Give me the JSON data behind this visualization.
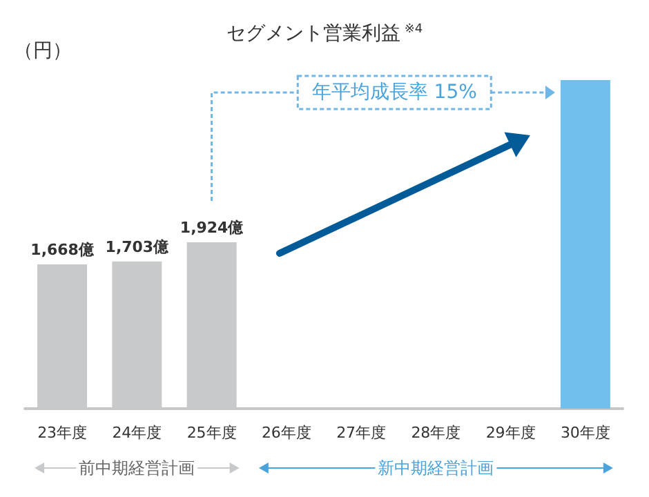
{
  "chart_data": {
    "type": "bar",
    "title": "セグメント営業利益$^{※4}$",
    "ylabel": "（円）",
    "categories": [
      "23年度",
      "24年度",
      "25年度",
      "26年度",
      "27年度",
      "28年度",
      "29年度",
      "30年度"
    ],
    "values": [
      1668,
      1703,
      1924,
      null,
      null,
      null,
      null,
      3800
    ],
    "colors": [
      "#c8c9cb",
      "#c8c9cb",
      "#c8c9cb",
      null,
      null,
      null,
      null,
      "#72bfee"
    ],
    "value_labels": [
      "1,668億",
      "1,703億",
      "1,924億",
      null,
      null,
      null,
      null,
      null
    ],
    "annotations": [
      "年平均成長率 15%",
      "前中期経営計画",
      "新中期経営計画"
    ],
    "grid": false
  }
}
